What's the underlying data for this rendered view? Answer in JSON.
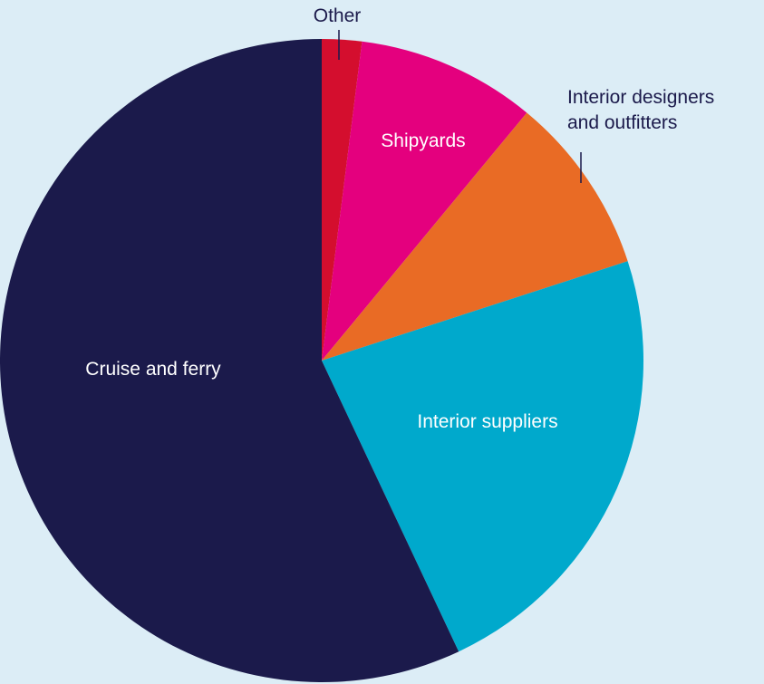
{
  "chart_data": {
    "type": "pie",
    "title": "",
    "slices": [
      {
        "label": "Other",
        "value": 2,
        "color": "#d40e2e"
      },
      {
        "label": "Shipyards",
        "value": 9,
        "color": "#e4007e"
      },
      {
        "label": "Interior designers and outfitters",
        "label_lines": [
          "Interior designers",
          "and outfitters"
        ],
        "value": 9,
        "color": "#e96b25"
      },
      {
        "label": "Interior suppliers",
        "value": 23,
        "color": "#00a9cc"
      },
      {
        "label": "Cruise and ferry",
        "value": 57,
        "color": "#1b1a4b"
      }
    ],
    "start_angle": "top",
    "direction": "clockwise",
    "label_color_inside": "#ffffff",
    "label_color_outside": "#1b1a4b",
    "leader_line_color": "#1b1a4b"
  }
}
